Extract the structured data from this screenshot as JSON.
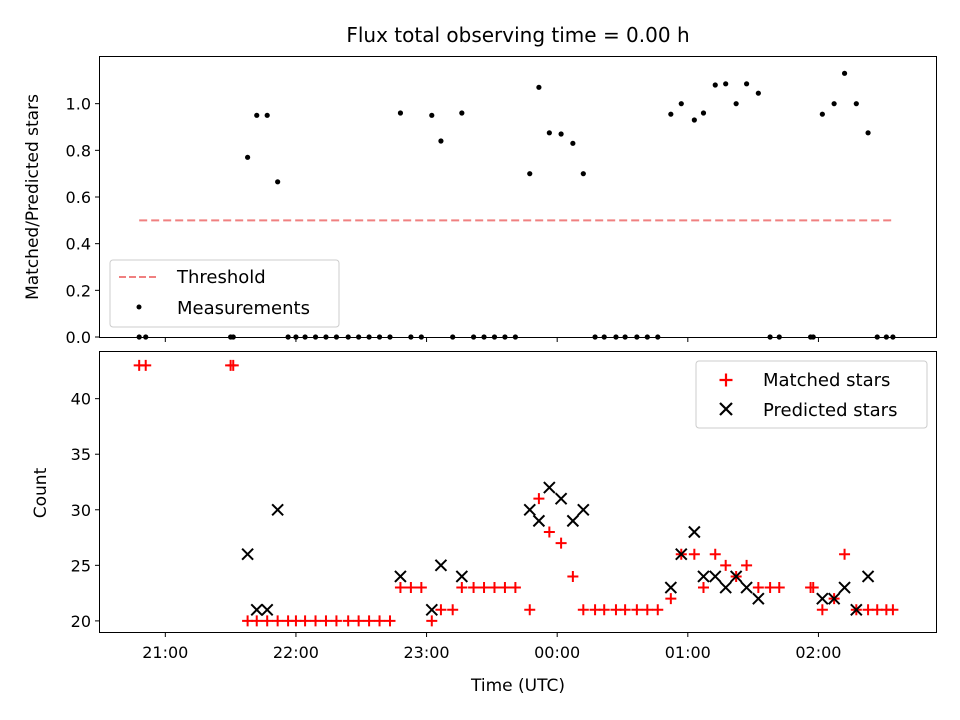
{
  "chart_data": [
    {
      "type": "scatter",
      "title": "Flux total observing time = 0.00 h",
      "xlabel": "",
      "ylabel": "Matched/Predicted stars",
      "x_unit": "hours UTC (values past 24 are after midnight)",
      "xlim": [
        20.5,
        26.9
      ],
      "ylim": [
        0,
        1.2
      ],
      "yticks": [
        "0.0",
        "0.2",
        "0.4",
        "0.6",
        "0.8",
        "1.0"
      ],
      "legend_position": "lower-left",
      "series": [
        {
          "name": "Threshold",
          "style": "dashed-line",
          "color": "#f08080",
          "x": [
            20.8,
            26.57
          ],
          "y": [
            0.5,
            0.5
          ]
        },
        {
          "name": "Measurements",
          "style": "dot",
          "color": "#000000",
          "x": [
            20.8,
            20.85,
            21.5,
            21.52,
            21.63,
            21.7,
            21.78,
            21.86,
            21.94,
            22.0,
            22.07,
            22.15,
            22.23,
            22.31,
            22.4,
            22.48,
            22.56,
            22.64,
            22.72,
            22.8,
            22.88,
            22.96,
            23.04,
            23.11,
            23.2,
            23.27,
            23.36,
            23.44,
            23.52,
            23.6,
            23.68,
            23.79,
            23.86,
            23.94,
            24.03,
            24.12,
            24.2,
            24.29,
            24.36,
            24.45,
            24.52,
            24.61,
            24.69,
            24.77,
            24.87,
            24.95,
            25.05,
            25.12,
            25.21,
            25.29,
            25.37,
            25.45,
            25.54,
            25.63,
            25.7,
            25.94,
            25.96,
            26.03,
            26.12,
            26.2,
            26.29,
            26.38,
            26.45,
            26.52,
            26.57
          ],
          "y": [
            0,
            0,
            0,
            0,
            0.77,
            0.95,
            0.95,
            0.665,
            0,
            0,
            0,
            0,
            0,
            0,
            0,
            0,
            0,
            0,
            0,
            0.96,
            0,
            0,
            0.95,
            0.84,
            0,
            0.96,
            0,
            0,
            0,
            0,
            0,
            0.7,
            1.07,
            0.875,
            0.87,
            0.83,
            0.7,
            0,
            0,
            0,
            0,
            0,
            0,
            0,
            0.955,
            1.0,
            0.93,
            0.96,
            1.08,
            1.085,
            1.0,
            1.085,
            1.045,
            0,
            0,
            0,
            0,
            0.955,
            1.0,
            1.13,
            1.0,
            0.875,
            0,
            0,
            0
          ]
        }
      ]
    },
    {
      "type": "scatter",
      "title": "",
      "xlabel": "Time (UTC)",
      "ylabel": "Count",
      "x_unit": "hours UTC (values past 24 are after midnight)",
      "xlim": [
        20.5,
        26.9
      ],
      "ylim": [
        19,
        44.2
      ],
      "yticks": [
        "20",
        "25",
        "30",
        "35",
        "40"
      ],
      "xticks": [
        {
          "value": 21,
          "label": "21:00"
        },
        {
          "value": 22,
          "label": "22:00"
        },
        {
          "value": 23,
          "label": "23:00"
        },
        {
          "value": 24,
          "label": "00:00"
        },
        {
          "value": 25,
          "label": "01:00"
        },
        {
          "value": 26,
          "label": "02:00"
        }
      ],
      "legend_position": "upper-right",
      "series": [
        {
          "name": "Matched stars",
          "style": "plus",
          "color": "#ff0000",
          "x": [
            20.8,
            20.85,
            21.5,
            21.52,
            21.63,
            21.7,
            21.78,
            21.86,
            21.94,
            22.0,
            22.07,
            22.15,
            22.23,
            22.31,
            22.4,
            22.48,
            22.56,
            22.64,
            22.72,
            22.8,
            22.88,
            22.96,
            23.04,
            23.11,
            23.2,
            23.27,
            23.36,
            23.44,
            23.52,
            23.6,
            23.68,
            23.79,
            23.86,
            23.94,
            24.03,
            24.12,
            24.2,
            24.29,
            24.36,
            24.45,
            24.52,
            24.61,
            24.69,
            24.77,
            24.87,
            24.95,
            25.05,
            25.12,
            25.21,
            25.29,
            25.37,
            25.45,
            25.54,
            25.63,
            25.7,
            25.94,
            25.96,
            26.03,
            26.12,
            26.2,
            26.29,
            26.38,
            26.45,
            26.52,
            26.57
          ],
          "y": [
            43,
            43,
            43,
            43,
            20,
            20,
            20,
            20,
            20,
            20,
            20,
            20,
            20,
            20,
            20,
            20,
            20,
            20,
            20,
            23,
            23,
            23,
            20,
            21,
            21,
            23,
            23,
            23,
            23,
            23,
            23,
            21,
            31,
            28,
            27,
            24,
            21,
            21,
            21,
            21,
            21,
            21,
            21,
            21,
            22,
            26,
            26,
            23,
            26,
            25,
            24,
            25,
            23,
            23,
            23,
            23,
            23,
            21,
            22,
            26,
            21,
            21,
            21,
            21,
            21
          ]
        },
        {
          "name": "Predicted stars",
          "style": "x",
          "color": "#000000",
          "x": [
            21.63,
            21.7,
            21.78,
            21.86,
            22.8,
            23.04,
            23.11,
            23.27,
            23.79,
            23.86,
            23.94,
            24.03,
            24.12,
            24.2,
            24.87,
            24.95,
            25.05,
            25.12,
            25.21,
            25.29,
            25.37,
            25.45,
            25.54,
            26.03,
            26.12,
            26.2,
            26.29,
            26.38
          ],
          "y": [
            26,
            21,
            21,
            30,
            24,
            21,
            25,
            24,
            30,
            29,
            32,
            31,
            29,
            30,
            23,
            26,
            28,
            24,
            24,
            23,
            24,
            23,
            22,
            22,
            22,
            23,
            21,
            24
          ]
        }
      ]
    }
  ]
}
